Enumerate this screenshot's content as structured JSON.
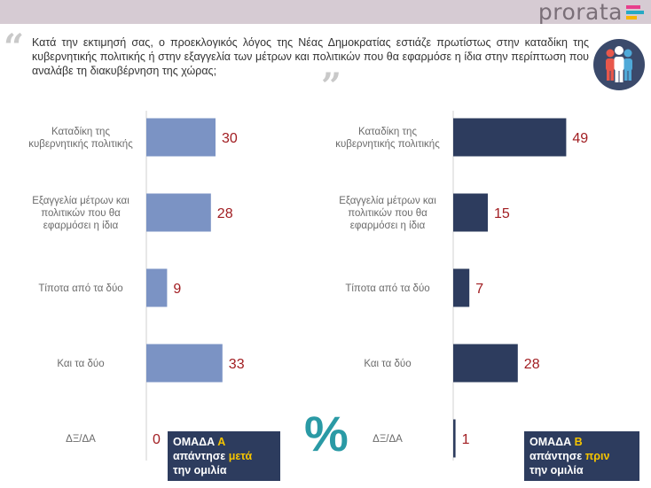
{
  "header": {
    "logo_text": "prorata",
    "logo_bar_colors": [
      "#e83e8c",
      "#27a9c4",
      "#f7b500"
    ]
  },
  "question": "Κατά την εκτιμησή σας, ο προεκλογικός λόγος της Νέας Δημοκρατίας εστιάζε πρωτίστως στην καταδίκη της κυβερνητικής πολιτικής ή στην εξαγγελία των μέτρων και πολιτικών που θα εφαρμόσε η ίδια στην περίπτωση που αναλάβε τη διακυβέρνηση της χώρας;",
  "groups": {
    "a": {
      "prefix": "ΟΜΑΔΑ ",
      "letter": "Α",
      "line2_prefix": "απάντησε ",
      "when": "μετά",
      "line3": "την ομιλία"
    },
    "b": {
      "prefix": "ΟΜΑΔΑ ",
      "letter": "Β",
      "line2_prefix": "απάντησε ",
      "when": "πριν",
      "line3": "την ομιλία"
    }
  },
  "colors": {
    "series_a": "#7b93c4",
    "series_b": "#2d3c5e",
    "value_label": "#a11d21",
    "category_label": "#6b6b6b",
    "percent_symbol": "#2a9aa5"
  },
  "percent_symbol": "%",
  "chart_data": [
    {
      "type": "bar",
      "orientation": "horizontal",
      "title": "ΟΜΑΔΑ Α απάντησε μετά την ομιλία",
      "categories": [
        [
          "Καταδίκη της",
          "κυβερνητικής πολιτικής"
        ],
        [
          "Εξαγγελία μέτρων και",
          "πολιτικών που θα",
          "εφαρμόσει η ίδια"
        ],
        [
          "Τίποτα από τα δύο"
        ],
        [
          "Και τα δύο"
        ],
        [
          "ΔΞ/ΔΑ"
        ]
      ],
      "values": [
        30,
        28,
        9,
        33,
        0
      ],
      "xlim": [
        0,
        100
      ],
      "unit": "%"
    },
    {
      "type": "bar",
      "orientation": "horizontal",
      "title": "ΟΜΑΔΑ Β απάντησε πριν την ομιλία",
      "categories": [
        [
          "Καταδίκη της",
          "κυβερνητικής πολιτικής"
        ],
        [
          "Εξαγγελία μέτρων και",
          "πολιτικών που θα",
          "εφαρμόσει η ίδια"
        ],
        [
          "Τίποτα από τα δύο"
        ],
        [
          "Και τα δύο"
        ],
        [
          "ΔΞ/ΔΑ"
        ]
      ],
      "values": [
        49,
        15,
        7,
        28,
        1
      ],
      "xlim": [
        0,
        100
      ],
      "unit": "%"
    }
  ]
}
